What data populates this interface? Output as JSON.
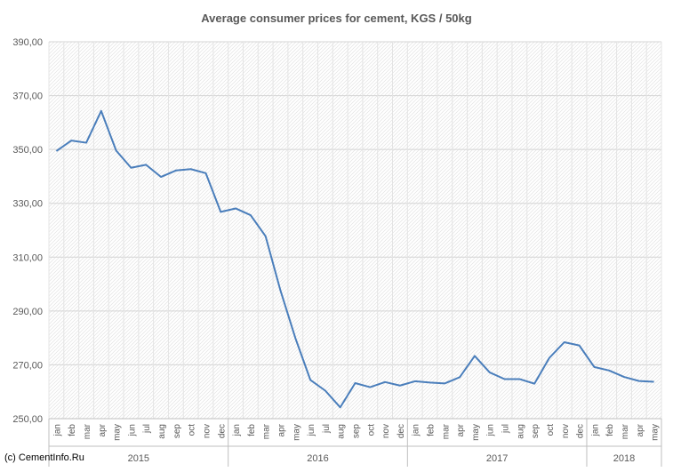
{
  "chart_data": {
    "type": "line",
    "title": "Average consumer prices for cement, KGS / 50kg",
    "xlabel": "",
    "ylabel": "",
    "ylim": [
      250,
      390
    ],
    "y_ticks": [
      "250,00",
      "270,00",
      "290,00",
      "310,00",
      "330,00",
      "350,00",
      "370,00",
      "390,00"
    ],
    "grid": true,
    "legend": "none",
    "line_color": "#4a7ebb",
    "groups": [
      {
        "label": "2015",
        "months": [
          "jan",
          "feb",
          "mar",
          "apr",
          "may",
          "jun",
          "jul",
          "aug",
          "sep",
          "oct",
          "nov",
          "dec"
        ]
      },
      {
        "label": "2016",
        "months": [
          "jan",
          "feb",
          "mar",
          "apr",
          "may",
          "jun",
          "jul",
          "aug",
          "sep",
          "oct",
          "nov",
          "dec"
        ]
      },
      {
        "label": "2017",
        "months": [
          "jan",
          "feb",
          "mar",
          "apr",
          "may",
          "jun",
          "jul",
          "aug",
          "sep",
          "oct",
          "nov",
          "dec"
        ]
      },
      {
        "label": "2018",
        "months": [
          "jan",
          "feb",
          "mar",
          "apr",
          "may"
        ]
      }
    ],
    "series": [
      {
        "values": [
          349.4,
          353.3,
          352.5,
          364.3,
          349.6,
          343.2,
          344.3,
          339.8,
          342.2,
          342.7,
          341.2,
          326.8,
          328.1,
          325.6,
          317.8,
          297.6,
          279.9,
          264.4,
          260.4,
          254.2,
          263.2,
          261.7,
          263.6,
          262.3,
          263.9,
          263.4,
          263.1,
          265.4,
          273.3,
          267.2,
          264.7,
          264.7,
          263.0,
          272.6,
          278.4,
          277.2,
          269.2,
          267.9,
          265.5,
          264.0,
          263.7
        ]
      }
    ]
  },
  "copyright": "(c) CementInfo.Ru"
}
